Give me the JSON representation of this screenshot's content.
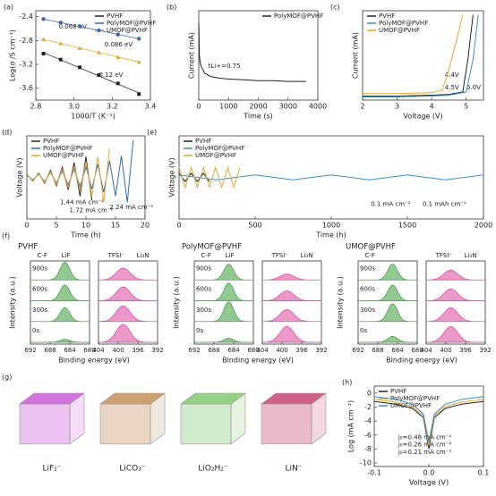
{
  "chart_data": [
    {
      "type": "scatter",
      "panel": "(a)",
      "xlabel": "1000/T (K⁻¹)",
      "ylabel": "Log(σ /S cm⁻¹)",
      "xlim": [
        2.8,
        3.4
      ],
      "xticks": [
        2.8,
        {
          "value": 3.0,
          "label": "3.0"
        },
        3.2,
        3.4
      ],
      "ylim": [
        -3.8,
        -2.3
      ],
      "yticks": [
        -2.4,
        -2.8,
        -3.2,
        -3.6
      ],
      "legend": "upper right",
      "series": [
        {
          "name": "PVHF",
          "color": "#222222",
          "marker": "square",
          "x": [
            2.84,
            2.93,
            3.03,
            3.13,
            3.23,
            3.34
          ],
          "values": [
            -3.02,
            -3.12,
            -3.25,
            -3.38,
            -3.52,
            -3.7
          ]
        },
        {
          "name": "PolyMOF@PVHF",
          "color": "#3b6aa8",
          "marker": "circle",
          "x": [
            2.84,
            2.93,
            3.03,
            3.13,
            3.23,
            3.34
          ],
          "values": [
            -2.44,
            -2.5,
            -2.56,
            -2.63,
            -2.7,
            -2.77
          ]
        },
        {
          "name": "UMOF@PVHF",
          "color": "#e8a634",
          "marker": "triangle",
          "x": [
            2.84,
            2.93,
            3.03,
            3.13,
            3.23,
            3.34
          ],
          "values": [
            -2.78,
            -2.85,
            -2.93,
            -3.0,
            -3.08,
            -3.16
          ]
        }
      ],
      "annotations": [
        {
          "text": "0.068 eV",
          "color": "#3b6aa8"
        },
        {
          "text": "0.086 eV",
          "color": "#e8a634"
        },
        {
          "text": "0.12 eV",
          "color": "#222222"
        }
      ]
    },
    {
      "type": "line",
      "panel": "(b)",
      "xlabel": "Time (s)",
      "ylabel": "Current (mA)",
      "xlim": [
        0,
        4000
      ],
      "xticks": [
        0,
        1000,
        2000,
        3000,
        4000
      ],
      "ylim": [
        0,
        1.1
      ],
      "legend": "upper right",
      "series": [
        {
          "name": "PolyMOF@PVHF",
          "color": "#222222",
          "x": [
            0,
            20,
            50,
            100,
            200,
            400,
            700,
            1000,
            1500,
            2000,
            2500,
            3000,
            3600
          ],
          "values": [
            0.95,
            0.55,
            0.45,
            0.4,
            0.33,
            0.29,
            0.27,
            0.26,
            0.25,
            0.24,
            0.24,
            0.23,
            0.23
          ]
        }
      ],
      "annotations": [
        {
          "text": "tLi+=0.75",
          "color": "#222222"
        }
      ]
    },
    {
      "type": "line",
      "panel": "(c)",
      "xlabel": "Voltage (V)",
      "ylabel": "Current (mA)",
      "xlim": [
        2,
        5.5
      ],
      "xticks": [
        2,
        3,
        4,
        5
      ],
      "ylim": [
        0,
        1.1
      ],
      "legend": "upper left",
      "series": [
        {
          "name": "PVHF",
          "color": "#222222",
          "x": [
            2,
            3,
            4,
            4.5,
            4.9,
            5.05,
            5.2
          ],
          "values": [
            0.05,
            0.05,
            0.06,
            0.07,
            0.1,
            0.5,
            1.05
          ]
        },
        {
          "name": "PolyMOF@PVHF",
          "color": "#3b8fc4",
          "x": [
            2,
            3,
            4,
            4.5,
            5.0,
            5.2,
            5.35
          ],
          "values": [
            0.04,
            0.04,
            0.05,
            0.06,
            0.1,
            0.5,
            1.05
          ]
        },
        {
          "name": "UMOF@PVHF",
          "color": "#e8a634",
          "x": [
            2,
            3,
            4,
            4.3,
            4.45,
            4.7,
            4.9
          ],
          "values": [
            0.08,
            0.08,
            0.09,
            0.12,
            0.3,
            0.7,
            1.05
          ]
        }
      ],
      "annotations": [
        {
          "text": "4.4V",
          "color": "#e8a634"
        },
        {
          "text": "4.5V",
          "color": "#222222"
        },
        {
          "text": "5.0V",
          "color": "#3b8fc4"
        }
      ]
    },
    {
      "type": "line",
      "panel": "(d)",
      "xlabel": "Time (h)",
      "ylabel": "Voltage (V)",
      "xlim": [
        0,
        20
      ],
      "xticks": [
        0,
        5,
        10,
        15,
        20
      ],
      "ylim": [
        -1,
        1
      ],
      "legend": "upper left",
      "series": [
        {
          "name": "PVHF",
          "color": "#222222",
          "x": [
            0,
            1,
            2,
            3,
            4,
            5,
            6,
            7,
            8,
            9,
            10,
            11
          ],
          "values": [
            0.07,
            -0.09,
            0.11,
            -0.14,
            0.17,
            -0.2,
            0.25,
            -0.3,
            0.36,
            -0.45,
            0.5,
            -0.55
          ]
        },
        {
          "name": "PolyMOF@PVHF",
          "color": "#2f6fa8",
          "x": [
            0,
            1,
            2,
            3,
            4,
            5,
            6,
            7,
            8,
            9,
            10,
            11,
            12,
            13,
            14,
            15,
            16,
            17,
            18
          ],
          "values": [
            0.05,
            -0.06,
            0.08,
            -0.1,
            0.12,
            -0.14,
            0.16,
            -0.18,
            0.2,
            -0.22,
            0.25,
            -0.28,
            0.32,
            -0.36,
            0.4,
            -0.45,
            0.52,
            -0.6,
            0.9
          ]
        },
        {
          "name": "UMOF@PVHF",
          "color": "#e8a634",
          "x": [
            0,
            1,
            2,
            3,
            4,
            5,
            6,
            7,
            8,
            9,
            10,
            11,
            12,
            13,
            14
          ],
          "values": [
            0.06,
            -0.08,
            0.1,
            -0.12,
            0.14,
            -0.17,
            0.2,
            -0.24,
            0.28,
            -0.33,
            0.38,
            -0.45,
            0.5,
            -0.6,
            0.7
          ]
        }
      ],
      "annotations": [
        {
          "text": "1.44 mA cm⁻²",
          "color": "#222222"
        },
        {
          "text": "1.72 mA cm⁻²",
          "color": "#e8a634"
        },
        {
          "text": "2.24 mA cm⁻²",
          "color": "#2f6fa8"
        }
      ]
    },
    {
      "type": "line",
      "panel": "(e)",
      "xlabel": "Time (h)",
      "ylabel": "Voltage (V)",
      "xlim": [
        0,
        2000
      ],
      "xticks": [
        0,
        500,
        1000,
        1500,
        2000
      ],
      "ylim": [
        -0.5,
        0.5
      ],
      "legend": "upper left",
      "series": [
        {
          "name": "PVHF",
          "color": "#222222",
          "x": [
            0,
            40,
            80,
            120,
            160,
            200
          ],
          "values": [
            0.05,
            -0.05,
            0.05,
            -0.05,
            0.05,
            -0.05
          ]
        },
        {
          "name": "PolyMOF@PVHF",
          "color": "#3b8fc4",
          "x": [
            0,
            250,
            500,
            750,
            1000,
            1250,
            1500,
            1750,
            2000
          ],
          "values": [
            0.03,
            -0.03,
            0.03,
            -0.03,
            0.03,
            -0.03,
            0.03,
            -0.03,
            0.03
          ]
        },
        {
          "name": "UMOF@PVHF",
          "color": "#e8a634",
          "x": [
            0,
            40,
            80,
            120,
            160,
            200,
            240,
            280,
            320,
            360,
            400
          ],
          "values": [
            0.12,
            -0.12,
            0.12,
            -0.12,
            0.12,
            -0.12,
            0.12,
            -0.12,
            0.12,
            -0.12,
            0.12
          ]
        }
      ],
      "annotations": [
        {
          "text": "0.1 mA cm⁻²",
          "color": "#222222"
        },
        {
          "text": "0.1 mAh cm⁻²",
          "color": "#222222"
        }
      ]
    },
    {
      "type": "xps",
      "panel": "(f)",
      "title": "PVHF",
      "ylabel": "Intensity (a.u.)",
      "xlabel": "Binding energy (eV)",
      "rows": [
        "900s",
        "600s",
        "300s",
        "0s"
      ],
      "c_xlim": [
        692,
        680
      ],
      "c_xticks": [
        692,
        688,
        684,
        680
      ],
      "n_xlim": [
        404,
        392
      ],
      "n_xticks": [
        404,
        400,
        396,
        392
      ],
      "c_labels": [
        "C-F",
        "LiF"
      ],
      "n_labels": [
        "TFSI⁻",
        "Li₃N"
      ],
      "c_center": 685,
      "n_center": 399,
      "c_heights": [
        0.9,
        0.8,
        0.7,
        0.15
      ],
      "n_heights": [
        0.6,
        0.7,
        0.8,
        0.9
      ]
    },
    {
      "type": "xps",
      "title": "PolyMOF@PVHF",
      "ylabel": "Intensity (a.u.)",
      "xlabel": "Binding energy (eV)",
      "rows": [
        "900s",
        "600s",
        "300s",
        "0s"
      ],
      "c_xlim": [
        692,
        680
      ],
      "c_xticks": [
        692,
        688,
        684,
        680
      ],
      "n_xlim": [
        404,
        392
      ],
      "n_xticks": [
        404,
        400,
        396,
        392
      ],
      "c_labels": [
        "C-F",
        "LiF"
      ],
      "n_labels": [
        "TFSI⁻",
        "Li₃N"
      ],
      "c_center": 685,
      "n_center": 399,
      "c_heights": [
        0.8,
        0.9,
        1.0,
        0.2
      ],
      "n_heights": [
        0.3,
        0.5,
        0.6,
        0.8
      ]
    },
    {
      "type": "xps",
      "title": "UMOF@PVHF",
      "ylabel": "Intensity (a.u.)",
      "xlabel": "Binding energy (eV)",
      "rows": [
        "900s",
        "600s",
        "300s",
        "0s"
      ],
      "c_xlim": [
        692,
        680
      ],
      "c_xticks": [
        692,
        688,
        684,
        680
      ],
      "n_xlim": [
        404,
        392
      ],
      "n_xticks": [
        404,
        400,
        396,
        392
      ],
      "c_labels": [
        "C-F"
      ],
      "n_labels": [
        "TFSI⁻",
        "Li₃N"
      ],
      "c_center": 685,
      "n_center": 399,
      "c_heights": [
        0.8,
        0.8,
        0.9,
        0.3
      ],
      "n_heights": [
        0.5,
        0.6,
        0.7,
        0.8
      ]
    },
    {
      "type": "image",
      "panel": "(g)",
      "labels": [
        "LiF₂⁻",
        "LiCO₃⁻",
        "LiO₂H₂⁻",
        "LiN⁻"
      ],
      "colors": [
        "#c94fd6",
        "#c08850",
        "#7cc46a",
        "#c23a6a"
      ]
    },
    {
      "type": "line",
      "panel": "(h)",
      "xlabel": "Voltage (V)",
      "ylabel": "Log (mA cm⁻²)",
      "xlim": [
        -0.1,
        0.1
      ],
      "xticks": [
        -0.1,
        {
          "value": 0,
          "label": "0.0"
        },
        0.1
      ],
      "ylim": [
        -10.5,
        1
      ],
      "yticks": [
        0,
        -2,
        -4,
        -6,
        -8,
        -10
      ],
      "legend": "upper left",
      "series": [
        {
          "name": "PVHF",
          "color": "#222222",
          "x": [
            -0.1,
            -0.06,
            -0.03,
            -0.01,
            0,
            0.01,
            0.03,
            0.06,
            0.1
          ],
          "values": [
            -1.2,
            -1.6,
            -2.2,
            -3.5,
            -8,
            -3.5,
            -2.2,
            -1.6,
            -1.2
          ]
        },
        {
          "name": "PolyMOF@PVHF",
          "color": "#e8a634",
          "x": [
            -0.1,
            -0.06,
            -0.03,
            -0.01,
            0,
            0.01,
            0.03,
            0.06,
            0.1
          ],
          "values": [
            -0.9,
            -1.3,
            -1.9,
            -3.2,
            -7.5,
            -3.2,
            -1.9,
            -1.3,
            -0.9
          ]
        },
        {
          "name": "UMOF@PVHF",
          "color": "#3b8fc4",
          "x": [
            -0.1,
            -0.06,
            -0.03,
            -0.01,
            0,
            0.01,
            0.03,
            0.06,
            0.1
          ],
          "values": [
            -0.5,
            -0.9,
            -1.6,
            -3,
            -7,
            -3,
            -1.6,
            -0.9,
            -0.5
          ]
        }
      ],
      "annotations": [
        {
          "text": "j₀=0.48 mA cm⁻²",
          "color": "#3b8fc4"
        },
        {
          "text": "j₀=0.26 mA cm⁻²",
          "color": "#e8a634"
        },
        {
          "text": "j₀=0.21 mA cm⁻²",
          "color": "#222222"
        }
      ]
    }
  ]
}
